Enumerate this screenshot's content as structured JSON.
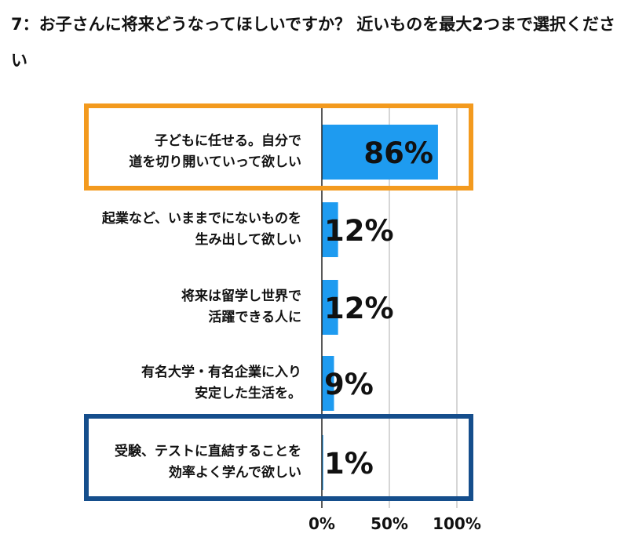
{
  "question": {
    "number": "7：",
    "text": "お子さんに将来どうなってほしいですか？ 近いものを最大2つまで選択ください"
  },
  "colors": {
    "bar": "#1E9BF0",
    "highlight_top": "#F39A1E",
    "highlight_bottom": "#154E8C",
    "grid": "#c8c8c8"
  },
  "chart_data": {
    "type": "bar",
    "orientation": "horizontal",
    "categories": [
      [
        "子どもに任せる。自分で",
        "道を切り開いていって欲しい"
      ],
      [
        "起業など、いままでにないものを",
        "生み出して欲しい"
      ],
      [
        "将来は留学し世界で",
        "活躍できる人に"
      ],
      [
        "有名大学・有名企業に入り",
        "安定した生活を。"
      ],
      [
        "受験、テストに直結することを",
        "効率よく学んで欲しい"
      ]
    ],
    "values": [
      86,
      12,
      12,
      9,
      1
    ],
    "value_labels": [
      "86%",
      "12%",
      "12%",
      "9%",
      "1%"
    ],
    "xlim": [
      0,
      100
    ],
    "x_ticks": [
      "0%",
      "50%",
      "100%"
    ],
    "grid": true,
    "highlighted": [
      0,
      4
    ]
  }
}
